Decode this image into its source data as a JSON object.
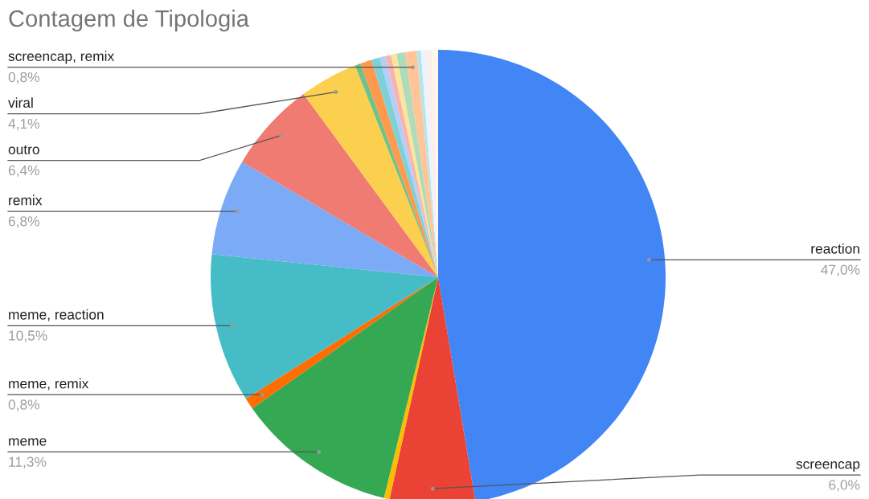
{
  "chart_data": {
    "type": "pie",
    "title": "Contagem de Tipologia",
    "categories": [
      "reaction",
      "screencap",
      null,
      "meme",
      "meme, remix",
      "meme, reaction",
      "remix",
      "outro",
      "viral",
      null,
      null,
      null,
      null,
      null,
      null,
      null,
      "screencap, remix",
      null,
      null,
      null,
      null
    ],
    "values": [
      47.0,
      6.0,
      0.4,
      11.3,
      0.8,
      10.5,
      6.8,
      6.4,
      4.1,
      0.4,
      0.8,
      0.6,
      0.4,
      0.4,
      0.4,
      0.6,
      0.8,
      0.3,
      0.4,
      0.4,
      0.4
    ],
    "colors": [
      "#4285f4",
      "#ea4335",
      "#fbbc04",
      "#34a853",
      "#ff6d01",
      "#46bdc6",
      "#7baaf7",
      "#f07b72",
      "#fcd04f",
      "#71c287",
      "#ff994d",
      "#7ed1d7",
      "#b3cefb",
      "#f7b4ae",
      "#fde49b",
      "#aedcba",
      "#ffc599",
      "#b5e5e8",
      "#ecf3fe",
      "#fdeeed",
      "#fff8e6"
    ],
    "value_labels": [
      "47,0%",
      "6,0%",
      null,
      "11,3%",
      "0,8%",
      "10,5%",
      "6,8%",
      "6,4%",
      "4,1%",
      null,
      null,
      null,
      null,
      null,
      null,
      null,
      "0,8%",
      null,
      null,
      null,
      null
    ],
    "legend": false
  }
}
